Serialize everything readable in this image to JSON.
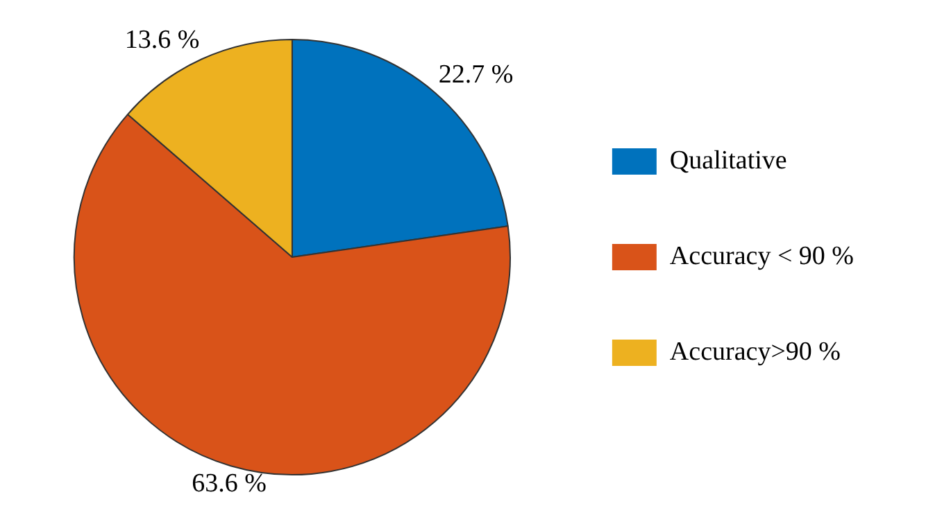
{
  "chart_data": {
    "type": "pie",
    "categories": [
      "Qualitative",
      "Accuracy < 90 %",
      "Accuracy>90 %"
    ],
    "values": [
      22.7,
      63.6,
      13.6
    ],
    "colors": [
      "#0072bd",
      "#d95319",
      "#edb120"
    ],
    "value_labels": [
      "22.7 %",
      "63.6 %",
      "13.6 %"
    ],
    "legend": "right"
  }
}
